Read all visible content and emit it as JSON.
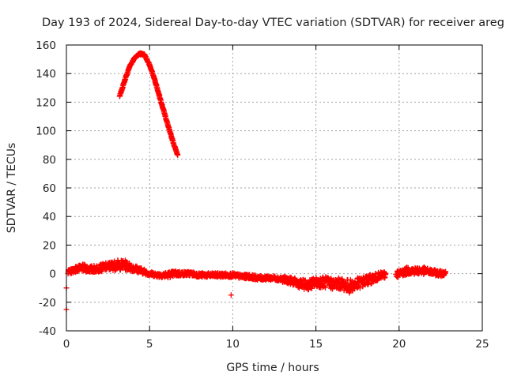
{
  "chart_data": {
    "type": "scatter",
    "title": "Day 193 of 2024, Sidereal Day-to-day VTEC variation (SDTVAR) for receiver areg",
    "xlabel": "GPS time / hours",
    "ylabel": "SDTVAR / TECUs",
    "xlim": [
      0,
      25
    ],
    "ylim": [
      -40,
      160
    ],
    "xticks": [
      0,
      5,
      10,
      15,
      20,
      25
    ],
    "yticks": [
      -40,
      -20,
      0,
      20,
      40,
      60,
      80,
      100,
      120,
      140,
      160
    ],
    "grid": true,
    "marker": "plus",
    "series": [
      {
        "name": "SDTVAR",
        "color": "#ff0000",
        "arc": {
          "x": [
            3.2,
            3.5,
            3.8,
            4.1,
            4.4,
            4.7,
            5.0,
            5.3,
            5.6,
            5.9,
            6.2,
            6.5,
            6.7
          ],
          "y": [
            124,
            135,
            145,
            151,
            154,
            153,
            146,
            136,
            124,
            112,
            100,
            89,
            83
          ]
        },
        "band": {
          "x": [
            0.1,
            0.5,
            1.0,
            1.5,
            2.0,
            2.5,
            3.0,
            3.5,
            4.0,
            4.5,
            5.0,
            5.5,
            6.0,
            6.5,
            7.0,
            7.5,
            8.0,
            8.5,
            9.0,
            9.5,
            10.0,
            10.5,
            11.0,
            11.5,
            12.0,
            12.5,
            13.0,
            13.5,
            14.0,
            14.5,
            15.0,
            15.5,
            16.0,
            16.5,
            17.0,
            17.5,
            18.0,
            18.5,
            19.0,
            20.0,
            20.5,
            21.0,
            21.5,
            22.0,
            22.5,
            22.8
          ],
          "y": [
            1,
            3,
            4,
            3,
            4,
            5,
            6,
            6,
            4,
            2,
            0,
            -1,
            -1,
            0,
            0,
            0,
            -1,
            -1,
            -1,
            -1,
            -1,
            -2,
            -2,
            -3,
            -3,
            -3,
            -4,
            -5,
            -7,
            -8,
            -6,
            -6,
            -7,
            -7,
            -9,
            -7,
            -5,
            -3,
            -1,
            0,
            2,
            2,
            2,
            1,
            0,
            1
          ],
          "spread": [
            1.5,
            2,
            2.5,
            2.5,
            2.5,
            3,
            3.5,
            3.5,
            2.5,
            2,
            1.5,
            1.5,
            2,
            2,
            1.5,
            1.5,
            1.5,
            1.5,
            1.5,
            1.5,
            1.5,
            1.5,
            1.5,
            1.5,
            1.5,
            1.5,
            2,
            2.5,
            3,
            3.5,
            3.5,
            4,
            4,
            4,
            4.5,
            4,
            3.5,
            3,
            2.5,
            2.5,
            2.5,
            2.5,
            2.5,
            2,
            2,
            1.5
          ]
        },
        "outliers": {
          "x": [
            0.0,
            0.0,
            0.1,
            9.9
          ],
          "y": [
            -25,
            -10,
            0,
            -15
          ]
        }
      }
    ]
  }
}
